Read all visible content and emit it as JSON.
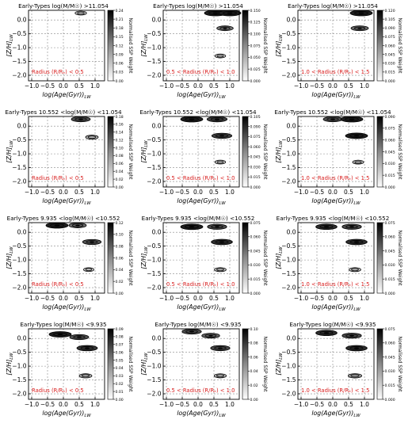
{
  "figure": {
    "colorbar_label": "Normalised SSP Weight",
    "xlabel": "log(Age(Gyr))$_{LW}$",
    "xlabel_main": "log(Age(Gyr))",
    "xlabel_sub": "LW",
    "ylabel_main": "[Z/H]",
    "ylabel_sub": "LW",
    "x_ticks": [
      "−1.0",
      "−0.5",
      "0.0",
      "0.5",
      "1.0"
    ],
    "y_ticks": [
      "0.0",
      "−0.5",
      "−1.0",
      "−1.5",
      "−2.0"
    ],
    "colors": {
      "radius_text": "#d81e1e",
      "grid": "#888888",
      "contour": "#000000"
    }
  },
  "chart_data": [
    {
      "type": "heatmap",
      "title": "Early-Types log(M/M☉) >11.054",
      "radius": "Radius (R/Rₑ) < 0.5",
      "xlim": [
        -1.1,
        1.3
      ],
      "ylim": [
        -2.2,
        0.35
      ],
      "grid": true,
      "colorbar": {
        "min": 0,
        "max": 0.24,
        "ticks": [
          "0.24",
          "0.21",
          "0.18",
          "0.15",
          "0.12",
          "0.09",
          "0.06",
          "0.03",
          "0.00"
        ]
      },
      "blobs": [
        {
          "x": 0.55,
          "y": 0.25,
          "weight": 0.06
        }
      ]
    },
    {
      "type": "heatmap",
      "title": "Early-Types log(M/M☉) >11.054",
      "radius": "0.5 < Radius (R/Rₑ) < 1.0",
      "xlim": [
        -1.1,
        1.3
      ],
      "ylim": [
        -2.2,
        0.35
      ],
      "grid": true,
      "colorbar": {
        "min": 0,
        "max": 0.15,
        "ticks": [
          "0.150",
          "0.125",
          "0.100",
          "0.075",
          "0.050",
          "0.025",
          "0.000"
        ]
      },
      "blobs": [
        {
          "x": 0.55,
          "y": 0.25,
          "weight": 0.15
        },
        {
          "x": 1.0,
          "y": 0.25,
          "weight": 0.15
        },
        {
          "x": 0.85,
          "y": -0.3,
          "weight": 0.09
        },
        {
          "x": 0.7,
          "y": -1.3,
          "weight": 0.03
        }
      ]
    },
    {
      "type": "heatmap",
      "title": "Early-Types log(M/M☉) >11.054",
      "radius": "1.0 < Radius (R/Rₑ) < 1.5",
      "xlim": [
        -1.1,
        1.3
      ],
      "ylim": [
        -2.2,
        0.35
      ],
      "grid": true,
      "colorbar": {
        "min": 0,
        "max": 0.12,
        "ticks": [
          "0.120",
          "0.105",
          "0.090",
          "0.075",
          "0.060",
          "0.045",
          "0.030",
          "0.015",
          "0.000"
        ]
      },
      "blobs": [
        {
          "x": 0.9,
          "y": 0.25,
          "weight": 0.12
        },
        {
          "x": 0.85,
          "y": -0.3,
          "weight": 0.08
        }
      ]
    },
    {
      "type": "heatmap",
      "title": "Early-Types 10.552 <log(M/M☉) <11.054",
      "radius": "Radius (R/Rₑ) < 0.5",
      "xlim": [
        -1.1,
        1.3
      ],
      "ylim": [
        -2.2,
        0.35
      ],
      "grid": true,
      "colorbar": {
        "min": 0,
        "max": 0.18,
        "ticks": [
          "0.18",
          "0.16",
          "0.14",
          "0.12",
          "0.10",
          "0.08",
          "0.06",
          "0.04",
          "0.02",
          "0.00"
        ]
      },
      "blobs": [
        {
          "x": 0.55,
          "y": 0.25,
          "weight": 0.14
        },
        {
          "x": 0.9,
          "y": -0.4,
          "weight": 0.06
        }
      ]
    },
    {
      "type": "heatmap",
      "title": "Early-Types 10.552 <log(M/M☉) <11.054",
      "radius": "0.5 < Radius (R/Rₑ) < 1.0",
      "xlim": [
        -1.1,
        1.3
      ],
      "ylim": [
        -2.2,
        0.35
      ],
      "grid": true,
      "colorbar": {
        "min": 0,
        "max": 0.105,
        "ticks": [
          "0.105",
          "0.090",
          "0.075",
          "0.060",
          "0.045",
          "0.030",
          "0.015",
          "0.000"
        ]
      },
      "blobs": [
        {
          "x": -0.2,
          "y": 0.25,
          "weight": 0.105
        },
        {
          "x": 0.6,
          "y": 0.25,
          "weight": 0.09
        },
        {
          "x": 0.75,
          "y": -0.35,
          "weight": 0.09
        },
        {
          "x": 0.7,
          "y": -1.3,
          "weight": 0.02
        }
      ]
    },
    {
      "type": "heatmap",
      "title": "Early-Types 10.552 <log(M/M☉) <11.054",
      "radius": "1.0 < Radius (R/Rₑ) < 1.5",
      "xlim": [
        -1.1,
        1.3
      ],
      "ylim": [
        -2.2,
        0.35
      ],
      "grid": true,
      "colorbar": {
        "min": 0,
        "max": 0.09,
        "ticks": [
          "0.090",
          "0.075",
          "0.060",
          "0.045",
          "0.030",
          "0.015",
          "0.000"
        ]
      },
      "blobs": [
        {
          "x": 0.0,
          "y": 0.25,
          "weight": 0.07
        },
        {
          "x": 0.6,
          "y": 0.25,
          "weight": 0.09
        },
        {
          "x": 0.75,
          "y": -0.35,
          "weight": 0.09
        },
        {
          "x": 0.8,
          "y": -1.3,
          "weight": 0.02
        }
      ]
    },
    {
      "type": "heatmap",
      "title": "Early-Types 9.935 <log(M/M☉) <10.552",
      "radius": "Radius (R/Rₑ) < 0.5",
      "xlim": [
        -1.1,
        1.3
      ],
      "ylim": [
        -2.2,
        0.35
      ],
      "grid": true,
      "colorbar": {
        "min": 0,
        "max": 0.12,
        "ticks": [
          "0.12",
          "0.10",
          "0.08",
          "0.06",
          "0.04",
          "0.02",
          "0.00"
        ]
      },
      "blobs": [
        {
          "x": -0.2,
          "y": 0.25,
          "weight": 0.12
        },
        {
          "x": 0.45,
          "y": 0.25,
          "weight": 0.08
        },
        {
          "x": 0.9,
          "y": -0.35,
          "weight": 0.09
        },
        {
          "x": 0.8,
          "y": -1.35,
          "weight": 0.02
        }
      ]
    },
    {
      "type": "heatmap",
      "title": "Early-Types 9.935 <log(M/M☉) <10.552",
      "radius": "0.5 < Radius (R/Rₑ) < 1.0",
      "xlim": [
        -1.1,
        1.3
      ],
      "ylim": [
        -2.2,
        0.35
      ],
      "grid": true,
      "colorbar": {
        "min": 0,
        "max": 0.075,
        "ticks": [
          "0.075",
          "0.060",
          "0.045",
          "0.030",
          "0.015",
          "0.000"
        ]
      },
      "blobs": [
        {
          "x": -0.2,
          "y": 0.2,
          "weight": 0.075
        },
        {
          "x": 0.6,
          "y": 0.2,
          "weight": 0.06
        },
        {
          "x": 0.75,
          "y": -0.35,
          "weight": 0.07
        },
        {
          "x": 0.7,
          "y": -1.35,
          "weight": 0.02
        }
      ]
    },
    {
      "type": "heatmap",
      "title": "Early-Types 9.935 <log(M/M☉) <10.552",
      "radius": "1.0 < Radius (R/Rₑ) < 1.5",
      "xlim": [
        -1.1,
        1.3
      ],
      "ylim": [
        -2.2,
        0.35
      ],
      "grid": true,
      "colorbar": {
        "min": 0,
        "max": 0.075,
        "ticks": [
          "0.075",
          "0.060",
          "0.045",
          "0.030",
          "0.015",
          "0.000"
        ]
      },
      "blobs": [
        {
          "x": -0.2,
          "y": 0.2,
          "weight": 0.07
        },
        {
          "x": 0.6,
          "y": 0.2,
          "weight": 0.06
        },
        {
          "x": 0.75,
          "y": -0.35,
          "weight": 0.07
        },
        {
          "x": 0.7,
          "y": -1.35,
          "weight": 0.02
        }
      ]
    },
    {
      "type": "heatmap",
      "title": "Early-Types log(M/M☉) <9.935",
      "radius": "Radius (R/Rₑ) < 0.5",
      "xlim": [
        -1.1,
        1.3
      ],
      "ylim": [
        -2.2,
        0.35
      ],
      "grid": true,
      "colorbar": {
        "min": 0,
        "max": 0.09,
        "ticks": [
          "0.09",
          "0.08",
          "0.07",
          "0.06",
          "0.05",
          "0.04",
          "0.03",
          "0.02",
          "0.01",
          "0.00"
        ]
      },
      "blobs": [
        {
          "x": -0.1,
          "y": 0.15,
          "weight": 0.09
        },
        {
          "x": 0.5,
          "y": 0.05,
          "weight": 0.07
        },
        {
          "x": 0.75,
          "y": -0.35,
          "weight": 0.08
        },
        {
          "x": 0.7,
          "y": -1.35,
          "weight": 0.03
        }
      ]
    },
    {
      "type": "heatmap",
      "title": "Early-Types log(M/M☉) <9.935",
      "radius": "0.5 < Radius (R/Rₑ) < 1.0",
      "xlim": [
        -1.1,
        1.3
      ],
      "ylim": [
        -2.2,
        0.35
      ],
      "grid": true,
      "colorbar": {
        "min": 0,
        "max": 0.1,
        "ticks": [
          "0.10",
          "0.08",
          "0.06",
          "0.04",
          "0.02",
          "0.00"
        ]
      },
      "blobs": [
        {
          "x": -0.2,
          "y": 0.25,
          "weight": 0.08
        },
        {
          "x": 0.4,
          "y": 0.1,
          "weight": 0.07
        },
        {
          "x": 0.7,
          "y": -0.35,
          "weight": 0.08
        },
        {
          "x": 0.7,
          "y": -1.35,
          "weight": 0.03
        }
      ]
    },
    {
      "type": "heatmap",
      "title": "Early-Types log(M/M☉) <9.935",
      "radius": "1.0 < Radius (R/Rₑ) < 1.5",
      "xlim": [
        -1.1,
        1.3
      ],
      "ylim": [
        -2.2,
        0.35
      ],
      "grid": true,
      "colorbar": {
        "min": 0,
        "max": 0.075,
        "ticks": [
          "0.075",
          "0.060",
          "0.045",
          "0.030",
          "0.015",
          "0.000"
        ]
      },
      "blobs": [
        {
          "x": -0.2,
          "y": 0.2,
          "weight": 0.07
        },
        {
          "x": 0.6,
          "y": 0.1,
          "weight": 0.06
        },
        {
          "x": 0.75,
          "y": -0.35,
          "weight": 0.07
        },
        {
          "x": 0.7,
          "y": -1.35,
          "weight": 0.03
        }
      ]
    }
  ]
}
